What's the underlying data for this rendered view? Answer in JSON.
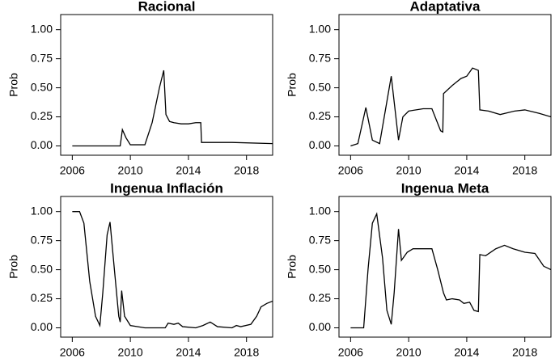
{
  "chart_data": [
    {
      "type": "line",
      "title": "Racional",
      "y_label": "Prob",
      "color": "#000000",
      "x": [
        2006,
        2009.3,
        2009.45,
        2009.7,
        2010,
        2011,
        2011.5,
        2012,
        2012.3,
        2012.45,
        2012.7,
        2013,
        2013.5,
        2014,
        2014.5,
        2014.85,
        2014.9,
        2017,
        2019.8
      ],
      "values": [
        0,
        0,
        0.14,
        0.07,
        0.01,
        0.01,
        0.2,
        0.5,
        0.65,
        0.27,
        0.21,
        0.2,
        0.19,
        0.19,
        0.2,
        0.2,
        0.03,
        0.03,
        0.02
      ],
      "xlim": [
        2005.2,
        2019.8
      ],
      "xticks": [
        2006,
        2010,
        2014,
        2018
      ],
      "ylim": [
        -0.08,
        1.13
      ],
      "yticks": [
        {
          "value": 0,
          "label": "0.00"
        },
        {
          "value": 0.25,
          "label": "0.25"
        },
        {
          "value": 0.5,
          "label": "0.50"
        },
        {
          "value": 0.75,
          "label": "0.75"
        },
        {
          "value": 1,
          "label": "1.00"
        }
      ]
    },
    {
      "type": "line",
      "title": "Adaptativa",
      "y_label": "Prob",
      "color": "#000000",
      "x": [
        2006,
        2006.5,
        2007.05,
        2007.5,
        2008,
        2008.8,
        2009.3,
        2009.6,
        2010,
        2011,
        2011.6,
        2012.2,
        2012.35,
        2012.4,
        2013,
        2013.3,
        2013.6,
        2014,
        2014.4,
        2014.8,
        2014.9,
        2015.5,
        2016.3,
        2017.3,
        2018,
        2019,
        2019.8
      ],
      "values": [
        0,
        0.02,
        0.33,
        0.05,
        0.02,
        0.6,
        0.05,
        0.25,
        0.3,
        0.32,
        0.32,
        0.13,
        0.12,
        0.45,
        0.52,
        0.55,
        0.58,
        0.6,
        0.67,
        0.65,
        0.31,
        0.3,
        0.27,
        0.3,
        0.31,
        0.28,
        0.25
      ],
      "xlim": [
        2005.2,
        2019.8
      ],
      "xticks": [
        2006,
        2010,
        2014,
        2018
      ],
      "ylim": [
        -0.08,
        1.13
      ],
      "yticks": [
        {
          "value": 0,
          "label": "0.00"
        },
        {
          "value": 0.25,
          "label": "0.25"
        },
        {
          "value": 0.5,
          "label": "0.50"
        },
        {
          "value": 0.75,
          "label": "0.75"
        },
        {
          "value": 1,
          "label": "1.00"
        }
      ]
    },
    {
      "type": "line",
      "title": "Ingenua Inflación",
      "y_label": "Prob",
      "color": "#000000",
      "x": [
        2006,
        2006.5,
        2006.8,
        2007.2,
        2007.6,
        2007.9,
        2008.1,
        2008.4,
        2008.6,
        2008.9,
        2009.2,
        2009.3,
        2009.4,
        2009.6,
        2010,
        2011,
        2012.4,
        2012.6,
        2013,
        2013.3,
        2013.6,
        2014.5,
        2015,
        2015.5,
        2016,
        2017,
        2017.3,
        2017.6,
        2018.3,
        2018.7,
        2019,
        2019.4,
        2019.8
      ],
      "values": [
        1,
        1,
        0.9,
        0.4,
        0.1,
        0.02,
        0.3,
        0.8,
        0.91,
        0.5,
        0.1,
        0.05,
        0.32,
        0.1,
        0.02,
        0,
        0,
        0.04,
        0.03,
        0.04,
        0.01,
        0,
        0.02,
        0.05,
        0.01,
        0,
        0.02,
        0.01,
        0.03,
        0.1,
        0.18,
        0.21,
        0.23
      ],
      "xlim": [
        2005.2,
        2019.8
      ],
      "xticks": [
        2006,
        2010,
        2014,
        2018
      ],
      "ylim": [
        -0.08,
        1.13
      ],
      "yticks": [
        {
          "value": 0,
          "label": "0.00"
        },
        {
          "value": 0.25,
          "label": "0.25"
        },
        {
          "value": 0.5,
          "label": "0.50"
        },
        {
          "value": 0.75,
          "label": "0.75"
        },
        {
          "value": 1,
          "label": "1.00"
        }
      ]
    },
    {
      "type": "line",
      "title": "Ingenua Meta",
      "y_label": "Prob",
      "color": "#000000",
      "x": [
        2006,
        2006.9,
        2007.2,
        2007.5,
        2007.8,
        2008.2,
        2008.5,
        2008.8,
        2009,
        2009.3,
        2009.5,
        2009.9,
        2010.3,
        2011.6,
        2012,
        2012.4,
        2012.6,
        2013,
        2013.5,
        2013.8,
        2014.2,
        2014.5,
        2014.8,
        2014.9,
        2015.3,
        2016,
        2016.6,
        2017.2,
        2018,
        2018.7,
        2019.3,
        2019.8
      ],
      "values": [
        0,
        0,
        0.5,
        0.9,
        0.98,
        0.6,
        0.15,
        0.03,
        0.3,
        0.85,
        0.58,
        0.65,
        0.68,
        0.68,
        0.5,
        0.3,
        0.24,
        0.25,
        0.24,
        0.21,
        0.22,
        0.15,
        0.14,
        0.63,
        0.62,
        0.68,
        0.71,
        0.68,
        0.65,
        0.64,
        0.53,
        0.5
      ],
      "xlim": [
        2005.2,
        2019.8
      ],
      "xticks": [
        2006,
        2010,
        2014,
        2018
      ],
      "ylim": [
        -0.08,
        1.13
      ],
      "yticks": [
        {
          "value": 0,
          "label": "0.00"
        },
        {
          "value": 0.25,
          "label": "0.25"
        },
        {
          "value": 0.5,
          "label": "0.50"
        },
        {
          "value": 0.75,
          "label": "0.75"
        },
        {
          "value": 1,
          "label": "1.00"
        }
      ]
    }
  ]
}
